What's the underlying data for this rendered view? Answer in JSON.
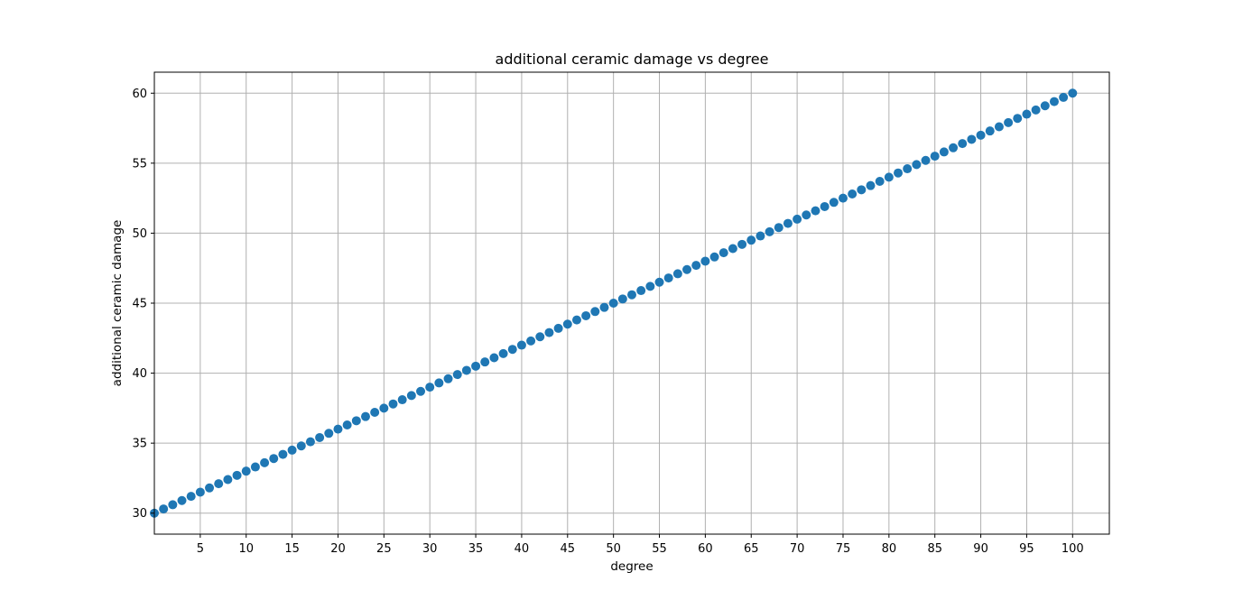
{
  "chart_data": {
    "type": "scatter",
    "title": "additional ceramic damage vs degree",
    "xlabel": "degree",
    "ylabel": "additional ceramic damage",
    "xlim": [
      0,
      104
    ],
    "ylim": [
      28.5,
      61.5
    ],
    "xticks": [
      5,
      10,
      15,
      20,
      25,
      30,
      35,
      40,
      45,
      50,
      55,
      60,
      65,
      70,
      75,
      80,
      85,
      90,
      95,
      100
    ],
    "yticks": [
      30,
      35,
      40,
      45,
      50,
      55,
      60
    ],
    "grid": true,
    "marker_color": "#1f77b4",
    "x": [
      0,
      1,
      2,
      3,
      4,
      5,
      6,
      7,
      8,
      9,
      10,
      11,
      12,
      13,
      14,
      15,
      16,
      17,
      18,
      19,
      20,
      21,
      22,
      23,
      24,
      25,
      26,
      27,
      28,
      29,
      30,
      31,
      32,
      33,
      34,
      35,
      36,
      37,
      38,
      39,
      40,
      41,
      42,
      43,
      44,
      45,
      46,
      47,
      48,
      49,
      50,
      51,
      52,
      53,
      54,
      55,
      56,
      57,
      58,
      59,
      60,
      61,
      62,
      63,
      64,
      65,
      66,
      67,
      68,
      69,
      70,
      71,
      72,
      73,
      74,
      75,
      76,
      77,
      78,
      79,
      80,
      81,
      82,
      83,
      84,
      85,
      86,
      87,
      88,
      89,
      90,
      91,
      92,
      93,
      94,
      95,
      96,
      97,
      98,
      99,
      100
    ],
    "y": [
      30.0,
      30.3,
      30.6,
      30.9,
      31.2,
      31.5,
      31.8,
      32.1,
      32.4,
      32.7,
      33.0,
      33.3,
      33.6,
      33.9,
      34.2,
      34.5,
      34.8,
      35.1,
      35.4,
      35.7,
      36.0,
      36.3,
      36.6,
      36.9,
      37.2,
      37.5,
      37.8,
      38.1,
      38.4,
      38.7,
      39.0,
      39.3,
      39.6,
      39.9,
      40.2,
      40.5,
      40.8,
      41.1,
      41.4,
      41.7,
      42.0,
      42.3,
      42.6,
      42.9,
      43.2,
      43.5,
      43.8,
      44.1,
      44.4,
      44.7,
      45.0,
      45.3,
      45.6,
      45.9,
      46.2,
      46.5,
      46.8,
      47.1,
      47.4,
      47.7,
      48.0,
      48.3,
      48.6,
      48.9,
      49.2,
      49.5,
      49.8,
      50.1,
      50.4,
      50.7,
      51.0,
      51.3,
      51.6,
      51.9,
      52.2,
      52.5,
      52.8,
      53.1,
      53.4,
      53.7,
      54.0,
      54.3,
      54.6,
      54.9,
      55.2,
      55.5,
      55.8,
      56.1,
      56.4,
      56.7,
      57.0,
      57.3,
      57.6,
      57.9,
      58.2,
      58.5,
      58.8,
      59.1,
      59.4,
      59.7,
      60.0
    ]
  }
}
